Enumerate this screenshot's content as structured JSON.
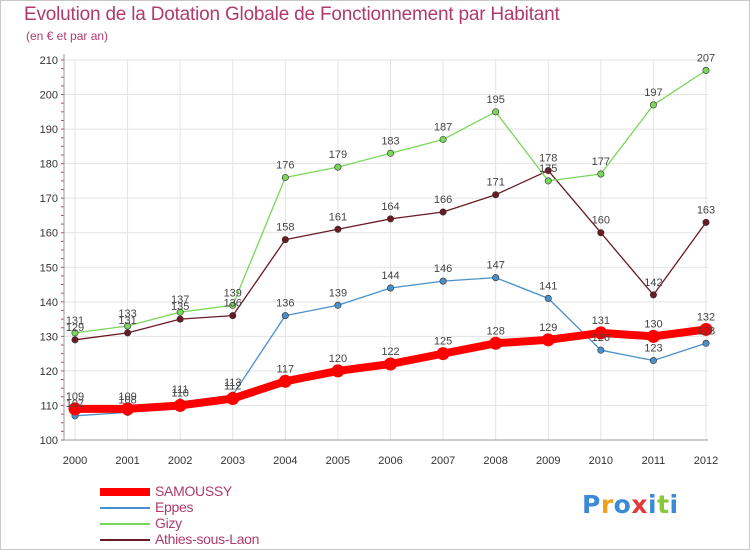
{
  "chart_data": {
    "type": "line",
    "title": "Evolution de la Dotation Globale de Fonctionnement par Habitant",
    "subtitle": "(en € et par an)",
    "xlabel": "",
    "ylabel": "",
    "categories": [
      "2000",
      "2001",
      "2002",
      "2003",
      "2004",
      "2005",
      "2006",
      "2007",
      "2008",
      "2009",
      "2010",
      "2011",
      "2012"
    ],
    "ylim": [
      100,
      210
    ],
    "yticks": [
      100,
      110,
      120,
      130,
      140,
      150,
      160,
      170,
      180,
      190,
      200,
      210
    ],
    "grid": true,
    "legend_position": "bottom-left",
    "series": [
      {
        "name": "SAMOUSSY",
        "color": "#ff0000",
        "emphasis": true,
        "values": [
          109,
          109,
          110,
          112,
          117,
          120,
          122,
          125,
          128,
          129,
          131,
          130,
          132
        ]
      },
      {
        "name": "Eppes",
        "color": "#4a90c8",
        "values": [
          107,
          108,
          111,
          113,
          136,
          139,
          144,
          146,
          147,
          141,
          126,
          123,
          128
        ]
      },
      {
        "name": "Gizy",
        "color": "#7ad65a",
        "values": [
          131,
          133,
          137,
          139,
          176,
          179,
          183,
          187,
          195,
          175,
          177,
          197,
          207
        ]
      },
      {
        "name": "Athies-sous-Laon",
        "color": "#6a1a24",
        "values": [
          129,
          131,
          135,
          136,
          158,
          161,
          164,
          166,
          171,
          178,
          160,
          142,
          163
        ]
      }
    ]
  },
  "logo": {
    "letters": [
      "P",
      "r",
      "o",
      "x",
      "i",
      "t",
      "i"
    ],
    "colors": [
      "#3a8ad8",
      "#f0a020",
      "#3a8ad8",
      "#e03a3a",
      "#3a8ad8",
      "#8ac83a",
      "#3a8ad8"
    ]
  }
}
